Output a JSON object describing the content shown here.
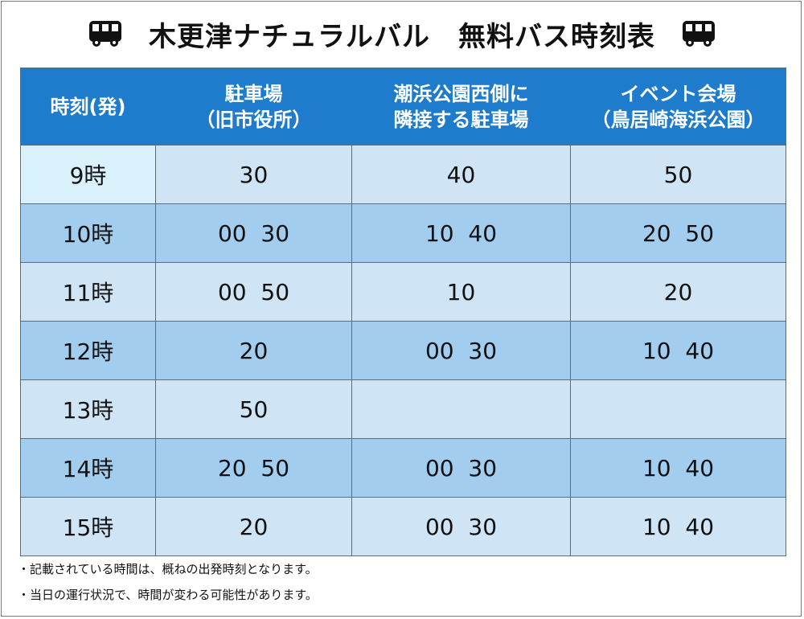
{
  "title": "木更津ナチュラルバル　無料バス時刻表",
  "icons": {
    "left": "bus-icon",
    "right": "bus-icon"
  },
  "colors": {
    "header": "#1f7ccd",
    "row_light": "#cfe5f6",
    "row_dark": "#a3cdee"
  },
  "table": {
    "headers": [
      {
        "line1": "時刻(発)",
        "line2": ""
      },
      {
        "line1": "駐車場",
        "line2": "（旧市役所）"
      },
      {
        "line1": "潮浜公園西側に",
        "line2": "隣接する駐車場"
      },
      {
        "line1": "イベント会場",
        "line2": "（鳥居崎海浜公園）"
      }
    ],
    "rows": [
      {
        "time": "9時",
        "c1": "30",
        "c2": "40",
        "c3": "50"
      },
      {
        "time": "10時",
        "c1": "00  30",
        "c2": "10  40",
        "c3": "20  50"
      },
      {
        "time": "11時",
        "c1": "00  50",
        "c2": "10",
        "c3": "20"
      },
      {
        "time": "12時",
        "c1": "20",
        "c2": "00  30",
        "c3": "10  40"
      },
      {
        "time": "13時",
        "c1": "50",
        "c2": "",
        "c3": ""
      },
      {
        "time": "14時",
        "c1": "20  50",
        "c2": "00  30",
        "c3": "10  40"
      },
      {
        "time": "15時",
        "c1": "20",
        "c2": "00  30",
        "c3": "10  40"
      }
    ]
  },
  "notes": [
    "・記載されている時間は、概ねの出発時刻となります。",
    "・当日の運行状況で、時間が変わる可能性があります。"
  ]
}
